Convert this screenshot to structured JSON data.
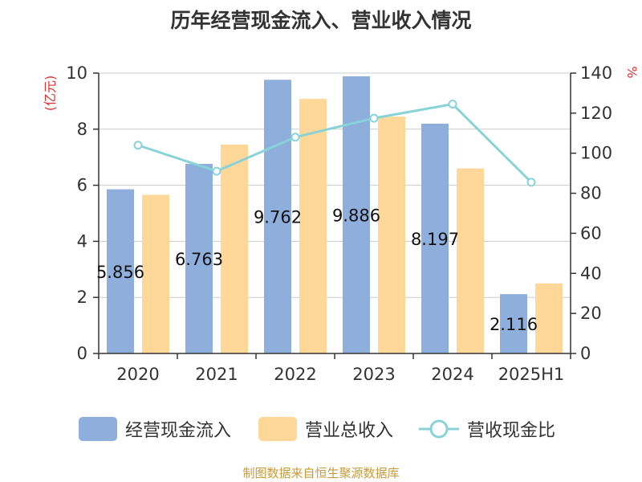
{
  "title": "历年经营现金流入、营业收入情况",
  "footer": "制图数据来自恒生聚源数据库",
  "chart_data": {
    "type": "bar",
    "categories": [
      "2020",
      "2021",
      "2022",
      "2023",
      "2024",
      "2025H1"
    ],
    "y_left": {
      "label": "(亿元)",
      "range": [
        0,
        10
      ],
      "ticks": [
        0,
        2,
        4,
        6,
        8,
        10
      ]
    },
    "y_right": {
      "label": "%",
      "range": [
        0,
        140
      ],
      "ticks": [
        0,
        20,
        40,
        60,
        80,
        100,
        120,
        140
      ]
    },
    "series": [
      {
        "name": "经营现金流入",
        "type": "bar",
        "axis": "left",
        "color": "#8eaedb",
        "values": [
          5.856,
          6.763,
          9.762,
          9.886,
          8.197,
          2.116
        ],
        "labels": [
          "5.856",
          "6.763",
          "9.762",
          "9.886",
          "8.197",
          "2.116"
        ]
      },
      {
        "name": "营业总收入",
        "type": "bar",
        "axis": "left",
        "color": "#ffd899",
        "values": [
          5.66,
          7.45,
          9.08,
          8.45,
          6.6,
          2.5
        ]
      },
      {
        "name": "营收现金比",
        "type": "line",
        "axis": "right",
        "color": "#88d3d8",
        "values": [
          104,
          91,
          108,
          117.5,
          124.5,
          85.5
        ]
      }
    ],
    "grid": true,
    "legend_position": "bottom"
  },
  "colors": {
    "title": "#333333",
    "axis": "#333333",
    "grid": "#cccccc",
    "axis_label": "#e03030",
    "footer": "#c79a3a"
  }
}
